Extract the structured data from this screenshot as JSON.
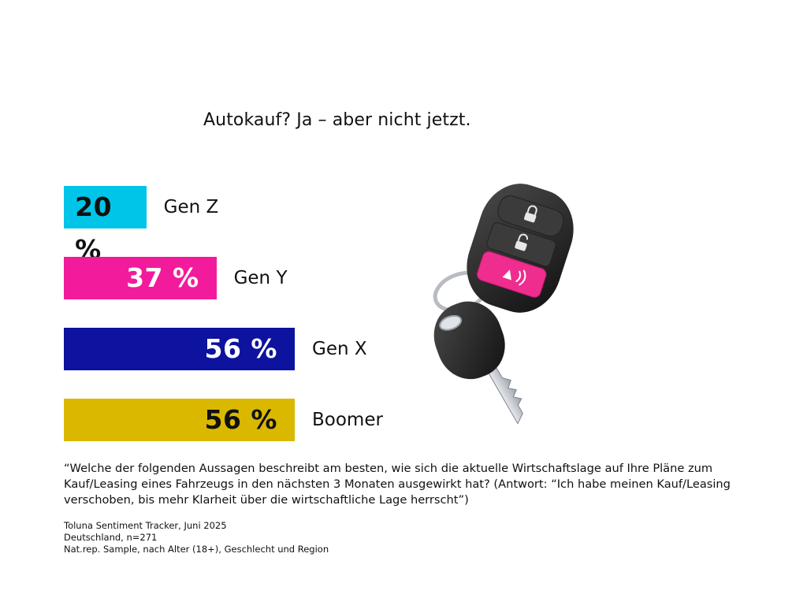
{
  "title": "Autokauf? Ja – aber nicht jetzt.",
  "chart_data": {
    "type": "bar",
    "orientation": "horizontal",
    "title": "Autokauf? Ja – aber nicht jetzt.",
    "categories": [
      "Gen Z",
      "Gen Y",
      "Gen X",
      "Boomer"
    ],
    "values": [
      20,
      37,
      56,
      56
    ],
    "value_labels": [
      "20 %",
      "37 %",
      "56 %",
      "56 %"
    ],
    "unit": "%",
    "xlim": [
      0,
      100
    ],
    "grid": false,
    "legend": "none",
    "colors": [
      "#00c4e8",
      "#f21b9b",
      "#0d129f",
      "#dbb800"
    ],
    "value_text_colors": [
      "#111111",
      "#ffffff",
      "#ffffff",
      "#111111"
    ]
  },
  "question": "“Welche der folgenden Aussagen beschreibt am besten, wie sich die aktuelle Wirtschaftslage auf Ihre Pläne zum Kauf/Leasing eines Fahrzeugs in den nächsten 3 Monaten ausgewirkt hat? (Antwort: “Ich habe meinen Kauf/Leasing verschoben, bis mehr Klarheit über die wirtschaftliche Lage herrscht”)",
  "source": {
    "line1": "Toluna Sentiment Tracker,  Juni 2025",
    "line2": "Deutschland, n=271",
    "line3": "Nat.rep. Sample, nach Alter (18+), Geschlecht und Region"
  },
  "illustration": {
    "icon": "car-key-icon",
    "button_colors": [
      "#3a3a3a",
      "#3a3a3a",
      "#ef2d8e"
    ]
  }
}
